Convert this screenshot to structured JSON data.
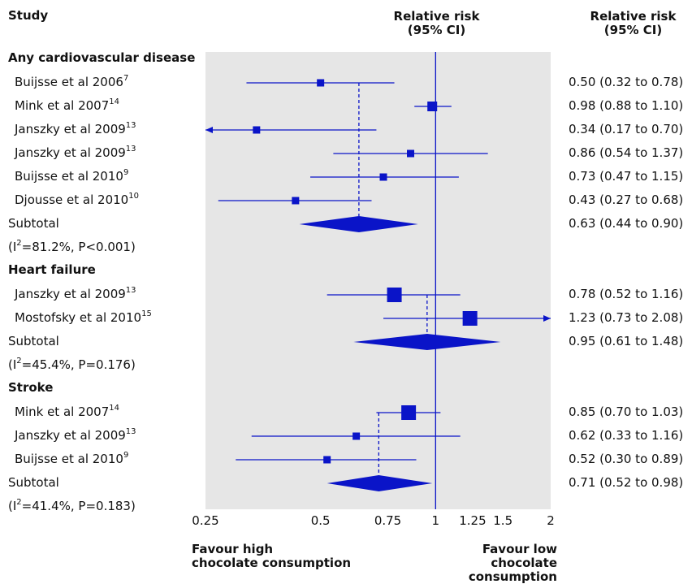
{
  "header": {
    "study": "Study",
    "rr_plot_line1": "Relative risk",
    "rr_plot_line2": "(95% CI)",
    "rr_col_line1": "Relative risk",
    "rr_col_line2": "(95% CI)"
  },
  "favour": {
    "left_line1": "Favour high",
    "left_line2": "chocolate consumption",
    "right_line1": "Favour low chocolate",
    "right_line2": "consumption"
  },
  "colors": {
    "marker": "#0a14c8",
    "panel": "#e6e6e6"
  },
  "chart_data": {
    "type": "forest",
    "xscale": "log",
    "xlim": [
      0.25,
      2
    ],
    "xticks": [
      0.25,
      0.5,
      0.75,
      1,
      1.25,
      1.5,
      2
    ],
    "xtick_labels": [
      "0.25",
      "0.5",
      "0.75",
      "1",
      "1.25",
      "1.5",
      "2"
    ],
    "reference_line": 1,
    "groups": [
      {
        "name": "Any cardiovascular disease",
        "studies": [
          {
            "author": "Buijsse et al 2006",
            "ref": "7",
            "rr": 0.5,
            "lo": 0.32,
            "hi": 0.78,
            "ci_text": "0.50 (0.32 to 0.78)",
            "weight": "small"
          },
          {
            "author": "Mink et al 2007",
            "ref": "14",
            "rr": 0.98,
            "lo": 0.88,
            "hi": 1.1,
            "ci_text": "0.98 (0.88 to 1.10)",
            "weight": "medium"
          },
          {
            "author": "Janszky et al 2009",
            "ref": "13",
            "rr": 0.34,
            "lo": 0.17,
            "hi": 0.7,
            "ci_text": "0.34 (0.17 to 0.70)",
            "weight": "small"
          },
          {
            "author": "Janszky et al 2009",
            "ref": "13",
            "rr": 0.86,
            "lo": 0.54,
            "hi": 1.37,
            "ci_text": "0.86 (0.54 to 1.37)",
            "weight": "small"
          },
          {
            "author": "Buijsse et al 2010",
            "ref": "9",
            "rr": 0.73,
            "lo": 0.47,
            "hi": 1.15,
            "ci_text": "0.73 (0.47 to 1.15)",
            "weight": "small"
          },
          {
            "author": "Djousse et al 2010",
            "ref": "10",
            "rr": 0.43,
            "lo": 0.27,
            "hi": 0.68,
            "ci_text": "0.43 (0.27 to 0.68)",
            "weight": "small"
          }
        ],
        "subtotal": {
          "label": "Subtotal",
          "rr": 0.63,
          "lo": 0.44,
          "hi": 0.9,
          "ci_text": "0.63 (0.44 to 0.90)",
          "het_pre": "(I",
          "het_sup": "2",
          "het_post": "=81.2%, P<0.001)"
        }
      },
      {
        "name": "Heart failure",
        "studies": [
          {
            "author": "Janszky et al 2009",
            "ref": "13",
            "rr": 0.78,
            "lo": 0.52,
            "hi": 1.16,
            "ci_text": "0.78 (0.52 to 1.16)",
            "weight": "large"
          },
          {
            "author": "Mostofsky et al 2010",
            "ref": "15",
            "rr": 1.23,
            "lo": 0.73,
            "hi": 2.08,
            "ci_text": "1.23 (0.73 to 2.08)",
            "weight": "large"
          }
        ],
        "subtotal": {
          "label": "Subtotal",
          "rr": 0.95,
          "lo": 0.61,
          "hi": 1.48,
          "ci_text": "0.95 (0.61 to 1.48)",
          "het_pre": "(I",
          "het_sup": "2",
          "het_post": "=45.4%, P=0.176)"
        }
      },
      {
        "name": "Stroke",
        "studies": [
          {
            "author": "Mink et al 2007",
            "ref": "14",
            "rr": 0.85,
            "lo": 0.7,
            "hi": 1.03,
            "ci_text": "0.85 (0.70 to 1.03)",
            "weight": "large"
          },
          {
            "author": "Janszky et al 2009",
            "ref": "13",
            "rr": 0.62,
            "lo": 0.33,
            "hi": 1.16,
            "ci_text": "0.62 (0.33 to 1.16)",
            "weight": "small"
          },
          {
            "author": "Buijsse et al 2010",
            "ref": "9",
            "rr": 0.52,
            "lo": 0.3,
            "hi": 0.89,
            "ci_text": "0.52 (0.30 to 0.89)",
            "weight": "small"
          }
        ],
        "subtotal": {
          "label": "Subtotal",
          "rr": 0.71,
          "lo": 0.52,
          "hi": 0.98,
          "ci_text": "0.71 (0.52 to 0.98)",
          "het_pre": "(I",
          "het_sup": "2",
          "het_post": "=41.4%, P=0.183)"
        }
      }
    ]
  }
}
